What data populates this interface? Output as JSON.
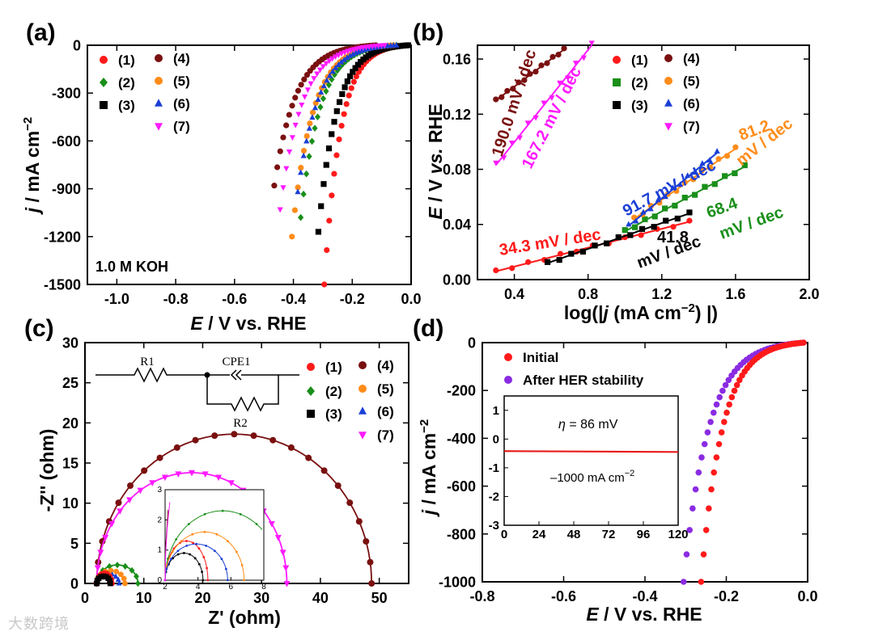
{
  "watermark": "大数跨境",
  "chart_data": [
    {
      "panel": "(a)",
      "type": "scatter",
      "xlabel_italic": "E",
      "xlabel_rest": " / V vs. RHE",
      "ylabel_italic": "j",
      "ylabel_rest": " / mA cm",
      "ylabel_sup": "−2",
      "xlim": [
        -1.1,
        0.0
      ],
      "ylim": [
        -1500,
        0
      ],
      "xticks": [
        "-1.0",
        "-0.8",
        "-0.6",
        "-0.4",
        "-0.2",
        "0.0"
      ],
      "xtick_values": [
        -1.0,
        -0.8,
        -0.6,
        -0.4,
        -0.2,
        0.0
      ],
      "yticks": [
        "0",
        "-300",
        "-600",
        "-900",
        "-1200",
        "-1500"
      ],
      "ytick_values": [
        0,
        -300,
        -600,
        -900,
        -1200,
        -1500
      ],
      "annotation": "1.0 M KOH",
      "series": [
        {
          "name": "(1)",
          "color": "#ff1a1a",
          "marker": "circle",
          "onset": -0.01,
          "end_x": -0.295,
          "end_y": -1500
        },
        {
          "name": "(2)",
          "color": "#1a8f1a",
          "marker": "diamond",
          "onset": -0.05,
          "end_x": -0.375,
          "end_y": -1080
        },
        {
          "name": "(3)",
          "color": "#000000",
          "marker": "square",
          "onset": -0.01,
          "end_x": -0.315,
          "end_y": -1170
        },
        {
          "name": "(4)",
          "color": "#7a1010",
          "marker": "circle",
          "onset": -0.12,
          "end_x": -0.465,
          "end_y": -880
        },
        {
          "name": "(5)",
          "color": "#ff8c1a",
          "marker": "circle",
          "onset": -0.06,
          "end_x": -0.405,
          "end_y": -1200
        },
        {
          "name": "(6)",
          "color": "#1a3fd6",
          "marker": "triangle",
          "onset": -0.05,
          "end_x": -0.385,
          "end_y": -920
        },
        {
          "name": "(7)",
          "color": "#ff1aff",
          "marker": "triangle-down",
          "onset": -0.09,
          "end_x": -0.445,
          "end_y": -1030
        }
      ]
    },
    {
      "panel": "(b)",
      "type": "scatter",
      "xlabel": "log(|",
      "xlabel_j": "j",
      "xlabel_mid": " (mA cm",
      "xlabel_sup": "−2",
      "xlabel_end": ") |)",
      "ylabel_italic1": "E",
      "ylabel_mid": " / V ",
      "ylabel_italic2": "vs.",
      "ylabel_end": " RHE",
      "xlim": [
        0.2,
        2.0
      ],
      "ylim": [
        0.0,
        0.17
      ],
      "xticks": [
        "0.4",
        "0.8",
        "1.2",
        "1.6",
        "2.0"
      ],
      "xtick_values": [
        0.4,
        0.8,
        1.2,
        1.6,
        2.0
      ],
      "yticks": [
        "0.00",
        "0.04",
        "0.08",
        "0.12",
        "0.16"
      ],
      "ytick_values": [
        0.0,
        0.04,
        0.08,
        0.12,
        0.16
      ],
      "series": [
        {
          "name": "(1)",
          "color": "#ff1a1a",
          "marker": "circle",
          "x": [
            0.3,
            1.35
          ],
          "y": [
            0.006,
            0.042
          ],
          "slope_label": "34.3 mV / dec"
        },
        {
          "name": "(2)",
          "color": "#1a8f1a",
          "marker": "square",
          "x": [
            1.0,
            1.65
          ],
          "y": [
            0.035,
            0.082
          ],
          "slope_label": "68.4 mV / dec"
        },
        {
          "name": "(3)",
          "color": "#000000",
          "marker": "square",
          "x": [
            0.58,
            1.35
          ],
          "y": [
            0.012,
            0.048
          ],
          "slope_label": "41.8 mV / dec"
        },
        {
          "name": "(4)",
          "color": "#7a1010",
          "marker": "circle",
          "x": [
            0.3,
            0.67
          ],
          "y": [
            0.13,
            0.167
          ],
          "slope_label": "190.0 mV / dec"
        },
        {
          "name": "(5)",
          "color": "#ff8c1a",
          "marker": "circle",
          "x": [
            1.05,
            1.6
          ],
          "y": [
            0.044,
            0.095
          ],
          "slope_label": "81.2 mV / dec"
        },
        {
          "name": "(6)",
          "color": "#1a3fd6",
          "marker": "triangle",
          "x": [
            1.02,
            1.5
          ],
          "y": [
            0.039,
            0.092
          ],
          "slope_label": "91.7 mV / dec"
        },
        {
          "name": "(7)",
          "color": "#ff1aff",
          "marker": "triangle-down",
          "x": [
            0.3,
            0.82
          ],
          "y": [
            0.083,
            0.17
          ],
          "slope_label": "167.2 mV / dec"
        }
      ],
      "labels": {
        "s1": "34.3 mV / dec",
        "s2a": "68.4",
        "s2b": "mV / dec",
        "s3a": "41.8",
        "s3b": "mV / dec",
        "s4": "190.0 mV / dec",
        "s5a": "81.2",
        "s5b": "mV / dec",
        "s6": "91.7 mV / dec",
        "s7": "167.2 mV / dec"
      }
    },
    {
      "panel": "(c)",
      "type": "scatter",
      "xlabel": "Z' (ohm)",
      "ylabel": "-Z'' (ohm)",
      "xlim": [
        0,
        55
      ],
      "ylim": [
        0,
        30
      ],
      "xticks": [
        "0",
        "10",
        "20",
        "30",
        "40",
        "50"
      ],
      "xtick_values": [
        0,
        10,
        20,
        30,
        40,
        50
      ],
      "yticks": [
        "0",
        "5",
        "10",
        "15",
        "20",
        "25",
        "30"
      ],
      "ytick_values": [
        0,
        5,
        10,
        15,
        20,
        25,
        30
      ],
      "circuit": {
        "r1": "R1",
        "cpe": "CPE1",
        "r2": "R2"
      },
      "series": [
        {
          "name": "(1)",
          "color": "#ff1a1a",
          "marker": "circle",
          "x0": 2.0,
          "x1": 4.6,
          "peak": 1.3
        },
        {
          "name": "(2)",
          "color": "#1a8f1a",
          "marker": "diamond",
          "x0": 2.0,
          "x1": 9.0,
          "peak": 2.3
        },
        {
          "name": "(3)",
          "color": "#000000",
          "marker": "square",
          "x0": 2.0,
          "x1": 4.3,
          "peak": 0.9
        },
        {
          "name": "(4)",
          "color": "#7a1010",
          "marker": "circle",
          "x0": 2.0,
          "x1": 48.7,
          "peak": 18.6
        },
        {
          "name": "(5)",
          "color": "#ff8c1a",
          "marker": "circle",
          "x0": 2.0,
          "x1": 6.8,
          "peak": 1.6
        },
        {
          "name": "(6)",
          "color": "#1a3fd6",
          "marker": "triangle",
          "x0": 2.0,
          "x1": 5.8,
          "peak": 1.2
        },
        {
          "name": "(7)",
          "color": "#ff1aff",
          "marker": "triangle-down",
          "x0": 2.0,
          "x1": 34.3,
          "peak": 13.8
        }
      ],
      "inset": {
        "xlim": [
          2,
          8
        ],
        "ylim": [
          0,
          3
        ],
        "xticks": [
          "2",
          "4",
          "6",
          "8"
        ],
        "xtick_values": [
          2,
          4,
          6,
          8
        ],
        "yticks": [
          "0",
          "1",
          "2",
          "3"
        ],
        "ytick_values": [
          0,
          1,
          2,
          3
        ]
      }
    },
    {
      "panel": "(d)",
      "type": "scatter",
      "xlabel_italic": "E",
      "xlabel_rest": " / V vs. RHE",
      "ylabel_italic": "j",
      "ylabel_rest": " / mA cm",
      "ylabel_sup": "−2",
      "xlim": [
        -0.8,
        0.0
      ],
      "ylim": [
        -1000,
        0
      ],
      "xticks": [
        "-0.8",
        "-0.6",
        "-0.4",
        "-0.2",
        "0.0"
      ],
      "xtick_values": [
        -0.8,
        -0.6,
        -0.4,
        -0.2,
        0.0
      ],
      "yticks": [
        "0",
        "-200",
        "-400",
        "-600",
        "-800",
        "-1000"
      ],
      "ytick_values": [
        0,
        -200,
        -400,
        -600,
        -800,
        -1000
      ],
      "series": [
        {
          "name": "Initial",
          "color": "#ff1a1a",
          "marker": "circle",
          "end_x": -0.262,
          "end_y": -1000
        },
        {
          "name": "After HER stability",
          "color": "#8a2be2",
          "marker": "circle",
          "end_x": -0.305,
          "end_y": -1000
        }
      ],
      "inset": {
        "xlim": [
          0,
          120
        ],
        "ylim": [
          -3,
          1.5
        ],
        "xticks": [
          "0",
          "24",
          "48",
          "72",
          "96",
          "120"
        ],
        "xtick_values": [
          0,
          24,
          48,
          72,
          96,
          120
        ],
        "yticks": [
          "1",
          "0",
          "-1",
          "-2",
          "-3"
        ],
        "ytick_values": [
          1,
          0,
          -1,
          -2,
          -3
        ],
        "x": [
          0,
          120
        ],
        "y": [
          -0.42,
          -0.45
        ],
        "eta_label_italic": "η",
        "eta_label_rest": " = 86 mV",
        "current_label": "–1000 mA cm",
        "current_sup": "−2"
      }
    }
  ]
}
